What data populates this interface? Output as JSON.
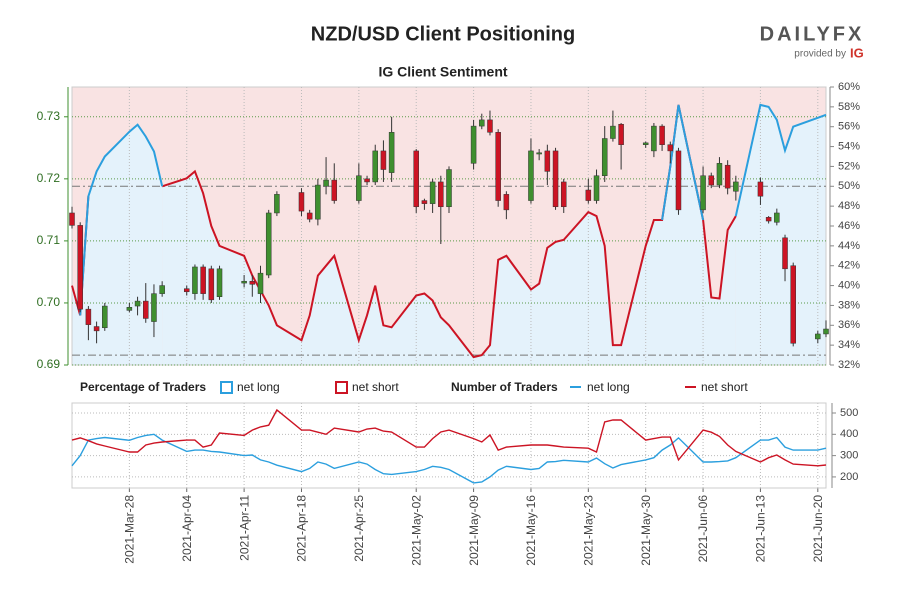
{
  "brand": {
    "name": "DAILYFX",
    "tagline": "provided by",
    "partner": "IG"
  },
  "chart_data": [
    {
      "type": "candlestick",
      "title": "NZD/USD Client Positioning",
      "subtitle": "IG Client Sentiment",
      "legend_title": "Percentage of Traders",
      "x": [
        "2021-03-21",
        "2021-03-22",
        "2021-03-23",
        "2021-03-24",
        "2021-03-25",
        "2021-03-28",
        "2021-03-29",
        "2021-03-30",
        "2021-03-31",
        "2021-04-01",
        "2021-04-04",
        "2021-04-05",
        "2021-04-06",
        "2021-04-07",
        "2021-04-08",
        "2021-04-11",
        "2021-04-12",
        "2021-04-13",
        "2021-04-14",
        "2021-04-15",
        "2021-04-18",
        "2021-04-19",
        "2021-04-20",
        "2021-04-21",
        "2021-04-22",
        "2021-04-25",
        "2021-04-26",
        "2021-04-27",
        "2021-04-28",
        "2021-04-29",
        "2021-05-02",
        "2021-05-03",
        "2021-05-04",
        "2021-05-05",
        "2021-05-06",
        "2021-05-09",
        "2021-05-10",
        "2021-05-11",
        "2021-05-12",
        "2021-05-13",
        "2021-05-16",
        "2021-05-17",
        "2021-05-18",
        "2021-05-19",
        "2021-05-20",
        "2021-05-23",
        "2021-05-24",
        "2021-05-25",
        "2021-05-26",
        "2021-05-27",
        "2021-05-30",
        "2021-05-31",
        "2021-06-01",
        "2021-06-02",
        "2021-06-03",
        "2021-06-06",
        "2021-06-07",
        "2021-06-08",
        "2021-06-09",
        "2021-06-10",
        "2021-06-13",
        "2021-06-14",
        "2021-06-15",
        "2021-06-16",
        "2021-06-17",
        "2021-06-20",
        "2021-06-21"
      ],
      "xlim": [
        "2021-03-21",
        "2021-06-21"
      ],
      "candles": {
        "open": [
          0.7145,
          0.7125,
          0.699,
          0.6962,
          0.696,
          0.6988,
          0.6995,
          0.7003,
          0.697,
          0.7015,
          0.7023,
          0.7015,
          0.7058,
          0.7055,
          0.701,
          0.7032,
          0.7035,
          0.7015,
          0.7045,
          0.7145,
          0.7178,
          0.7145,
          0.7135,
          0.7188,
          0.7198,
          0.7165,
          0.72,
          0.7195,
          0.7245,
          0.721,
          0.7245,
          0.7165,
          0.716,
          0.7195,
          0.7155,
          0.7225,
          0.7285,
          0.7295,
          0.7275,
          0.7175,
          0.7165,
          0.724,
          0.7245,
          0.7245,
          0.7195,
          0.7182,
          0.7165,
          0.7205,
          0.7265,
          0.7288,
          0.7255,
          0.7245,
          0.7285,
          0.7255,
          0.7245,
          0.715,
          0.7205,
          0.719,
          0.7222,
          0.718,
          0.7195,
          0.7138,
          0.713,
          0.7105,
          0.706,
          0.6942,
          0.695
        ],
        "high": [
          0.7155,
          0.713,
          0.6995,
          0.697,
          0.7,
          0.7,
          0.701,
          0.7032,
          0.703,
          0.7035,
          0.7028,
          0.7062,
          0.7062,
          0.706,
          0.706,
          0.7045,
          0.7045,
          0.706,
          0.715,
          0.718,
          0.7185,
          0.715,
          0.72,
          0.7235,
          0.7225,
          0.7225,
          0.7205,
          0.7255,
          0.7262,
          0.73,
          0.7248,
          0.7168,
          0.72,
          0.7205,
          0.722,
          0.7295,
          0.7305,
          0.731,
          0.728,
          0.718,
          0.7265,
          0.7248,
          0.7255,
          0.725,
          0.72,
          0.72,
          0.7215,
          0.7285,
          0.731,
          0.729,
          0.726,
          0.729,
          0.7288,
          0.726,
          0.725,
          0.722,
          0.721,
          0.7235,
          0.723,
          0.7205,
          0.7202,
          0.714,
          0.7152,
          0.711,
          0.7065,
          0.6955,
          0.6972
        ],
        "low": [
          0.712,
          0.6985,
          0.694,
          0.6935,
          0.6955,
          0.6985,
          0.698,
          0.6968,
          0.6945,
          0.701,
          0.7012,
          0.7005,
          0.7005,
          0.7,
          0.7005,
          0.7025,
          0.701,
          0.7,
          0.704,
          0.714,
          0.714,
          0.713,
          0.7125,
          0.7175,
          0.716,
          0.716,
          0.719,
          0.719,
          0.7195,
          0.7195,
          0.7145,
          0.715,
          0.7145,
          0.7095,
          0.7145,
          0.7215,
          0.728,
          0.727,
          0.7155,
          0.7135,
          0.716,
          0.723,
          0.719,
          0.715,
          0.7145,
          0.716,
          0.716,
          0.7195,
          0.726,
          0.7215,
          0.725,
          0.7235,
          0.7245,
          0.7225,
          0.7142,
          0.7145,
          0.7185,
          0.7185,
          0.7175,
          0.7165,
          0.7158,
          0.7128,
          0.7125,
          0.7035,
          0.693,
          0.6935,
          0.6945
        ],
        "close": [
          0.7125,
          0.699,
          0.6965,
          0.6955,
          0.6995,
          0.6993,
          0.7003,
          0.6975,
          0.7015,
          0.7028,
          0.7018,
          0.7058,
          0.7015,
          0.7005,
          0.7055,
          0.7035,
          0.703,
          0.7048,
          0.7145,
          0.7175,
          0.7148,
          0.7135,
          0.719,
          0.7198,
          0.7165,
          0.7205,
          0.7195,
          0.7245,
          0.7215,
          0.7275,
          0.7155,
          0.716,
          0.7195,
          0.7155,
          0.7215,
          0.7285,
          0.7295,
          0.7275,
          0.7165,
          0.715,
          0.7245,
          0.7242,
          0.7212,
          0.7155,
          0.7155,
          0.7165,
          0.7205,
          0.7265,
          0.7285,
          0.7255,
          0.7258,
          0.7285,
          0.7255,
          0.7245,
          0.715,
          0.7205,
          0.719,
          0.7225,
          0.7185,
          0.7195,
          0.7172,
          0.7132,
          0.7145,
          0.7055,
          0.6935,
          0.695,
          0.6958
        ]
      },
      "up_color": "#3f8f2f",
      "down_color": "#cc1424",
      "ylim": [
        0.69,
        0.7348
      ],
      "yticks": [
        0.69,
        {
          "value": 0.7,
          "label": "0.70"
        },
        0.71,
        0.72,
        0.73
      ],
      "y2lim": [
        32,
        60
      ],
      "y2ticks": [
        {
          "value": 32,
          "label": "32%"
        },
        {
          "value": 34,
          "label": "34%"
        },
        {
          "value": 36,
          "label": "36%"
        },
        {
          "value": 38,
          "label": "38%"
        },
        {
          "value": 40,
          "label": "40%"
        },
        {
          "value": 42,
          "label": "42%"
        },
        {
          "value": 44,
          "label": "44%"
        },
        {
          "value": 46,
          "label": "46%"
        },
        {
          "value": 48,
          "label": "48%"
        },
        {
          "value": 50,
          "label": "50%"
        },
        {
          "value": 52,
          "label": "52%"
        },
        {
          "value": 54,
          "label": "54%"
        },
        {
          "value": 56,
          "label": "56%"
        },
        {
          "value": 58,
          "label": "58%"
        },
        {
          "value": 60,
          "label": "60%"
        }
      ],
      "y2_reference_lines": [
        33,
        50
      ],
      "fill_above": "#f9e3e3",
      "fill_below": "#e4f2fb",
      "grid": true,
      "series": [
        {
          "name": "net long",
          "color": "#2b9fde",
          "axis": "y2",
          "values": [
            null,
            37,
            49,
            51.5,
            53,
            55.5,
            56.2,
            55,
            53.5,
            50,
            null,
            null,
            null,
            null,
            null,
            null,
            null,
            null,
            null,
            null,
            null,
            null,
            null,
            null,
            null,
            null,
            null,
            null,
            null,
            null,
            null,
            null,
            null,
            null,
            null,
            null,
            null,
            null,
            null,
            null,
            null,
            null,
            null,
            null,
            null,
            null,
            null,
            null,
            null,
            null,
            null,
            null,
            46.6,
            52,
            58.2,
            46.6,
            null,
            null,
            null,
            47,
            58.2,
            58,
            56.7,
            53.6,
            56,
            56.9,
            57.2
          ]
        },
        {
          "name": "net short",
          "color": "#cc1424",
          "axis": "y2",
          "values": [
            40,
            37,
            49,
            null,
            null,
            null,
            null,
            null,
            null,
            50,
            50.8,
            51.5,
            49.3,
            46,
            44,
            43,
            41,
            39.5,
            38,
            36,
            34.5,
            37,
            41,
            42,
            43,
            34.5,
            37,
            40,
            36,
            35.8,
            39,
            39.2,
            38.5,
            36.8,
            36,
            32.8,
            33,
            34,
            42.6,
            43,
            39.6,
            40.2,
            43.8,
            44.4,
            44.6,
            47.4,
            47,
            44,
            34,
            34,
            44,
            46.6,
            46.6,
            52,
            58.2,
            46.6,
            38.8,
            38.7,
            45.6,
            47,
            null,
            null,
            null,
            null,
            null,
            null,
            null
          ]
        }
      ]
    },
    {
      "type": "line",
      "legend_title": "Number of Traders",
      "x": [
        "2021-03-21",
        "2021-03-22",
        "2021-03-23",
        "2021-03-24",
        "2021-03-25",
        "2021-03-28",
        "2021-03-29",
        "2021-03-30",
        "2021-03-31",
        "2021-04-01",
        "2021-04-04",
        "2021-04-05",
        "2021-04-06",
        "2021-04-07",
        "2021-04-08",
        "2021-04-11",
        "2021-04-12",
        "2021-04-13",
        "2021-04-14",
        "2021-04-15",
        "2021-04-18",
        "2021-04-19",
        "2021-04-20",
        "2021-04-21",
        "2021-04-22",
        "2021-04-25",
        "2021-04-26",
        "2021-04-27",
        "2021-04-28",
        "2021-04-29",
        "2021-05-02",
        "2021-05-03",
        "2021-05-04",
        "2021-05-05",
        "2021-05-06",
        "2021-05-09",
        "2021-05-10",
        "2021-05-11",
        "2021-05-12",
        "2021-05-13",
        "2021-05-16",
        "2021-05-17",
        "2021-05-18",
        "2021-05-19",
        "2021-05-20",
        "2021-05-23",
        "2021-05-24",
        "2021-05-25",
        "2021-05-26",
        "2021-05-27",
        "2021-05-30",
        "2021-05-31",
        "2021-06-01",
        "2021-06-02",
        "2021-06-03",
        "2021-06-06",
        "2021-06-07",
        "2021-06-08",
        "2021-06-09",
        "2021-06-10",
        "2021-06-13",
        "2021-06-14",
        "2021-06-15",
        "2021-06-16",
        "2021-06-17",
        "2021-06-20",
        "2021-06-21"
      ],
      "xlim": [
        "2021-03-21",
        "2021-06-21"
      ],
      "xticks": [
        {
          "value": "2021-03-28",
          "label": "2021-Mar-28"
        },
        {
          "value": "2021-04-04",
          "label": "2021-Apr-04"
        },
        {
          "value": "2021-04-11",
          "label": "2021-Apr-11"
        },
        {
          "value": "2021-04-18",
          "label": "2021-Apr-18"
        },
        {
          "value": "2021-04-25",
          "label": "2021-Apr-25"
        },
        {
          "value": "2021-05-02",
          "label": "2021-May-02"
        },
        {
          "value": "2021-05-09",
          "label": "2021-May-09"
        },
        {
          "value": "2021-05-16",
          "label": "2021-May-16"
        },
        {
          "value": "2021-05-23",
          "label": "2021-May-23"
        },
        {
          "value": "2021-05-30",
          "label": "2021-May-30"
        },
        {
          "value": "2021-06-06",
          "label": "2021-Jun-06"
        },
        {
          "value": "2021-06-13",
          "label": "2021-Jun-13"
        },
        {
          "value": "2021-06-20",
          "label": "2021-Jun-20"
        }
      ],
      "ylim": [
        148,
        547
      ],
      "yticks": [
        200,
        300,
        400,
        500
      ],
      "grid": true,
      "series": [
        {
          "name": "net long",
          "color": "#2b9fde",
          "values": [
            252,
            300,
            373,
            380,
            385,
            372,
            385,
            395,
            400,
            373,
            320,
            326,
            326,
            320,
            317,
            300,
            303,
            280,
            270,
            255,
            225,
            240,
            270,
            260,
            240,
            270,
            260,
            235,
            215,
            212,
            225,
            235,
            250,
            245,
            235,
            172,
            176,
            200,
            232,
            250,
            235,
            240,
            270,
            272,
            278,
            270,
            289,
            262,
            242,
            258,
            280,
            290,
            326,
            350,
            383,
            270,
            270,
            272,
            275,
            290,
            373,
            373,
            385,
            340,
            326,
            326,
            335
          ]
        },
        {
          "name": "net short",
          "color": "#cc1424",
          "values": [
            373,
            383,
            370,
            355,
            345,
            317,
            317,
            350,
            359,
            364,
            373,
            373,
            340,
            350,
            406,
            395,
            420,
            435,
            443,
            514,
            420,
            420,
            410,
            400,
            429,
            411,
            425,
            429,
            415,
            411,
            340,
            340,
            380,
            411,
            420,
            380,
            364,
            397,
            326,
            340,
            350,
            350,
            350,
            345,
            340,
            335,
            317,
            458,
            467,
            467,
            373,
            380,
            387,
            387,
            280,
            420,
            410,
            390,
            350,
            320,
            270,
            290,
            303,
            280,
            260,
            252,
            256
          ]
        }
      ]
    }
  ]
}
